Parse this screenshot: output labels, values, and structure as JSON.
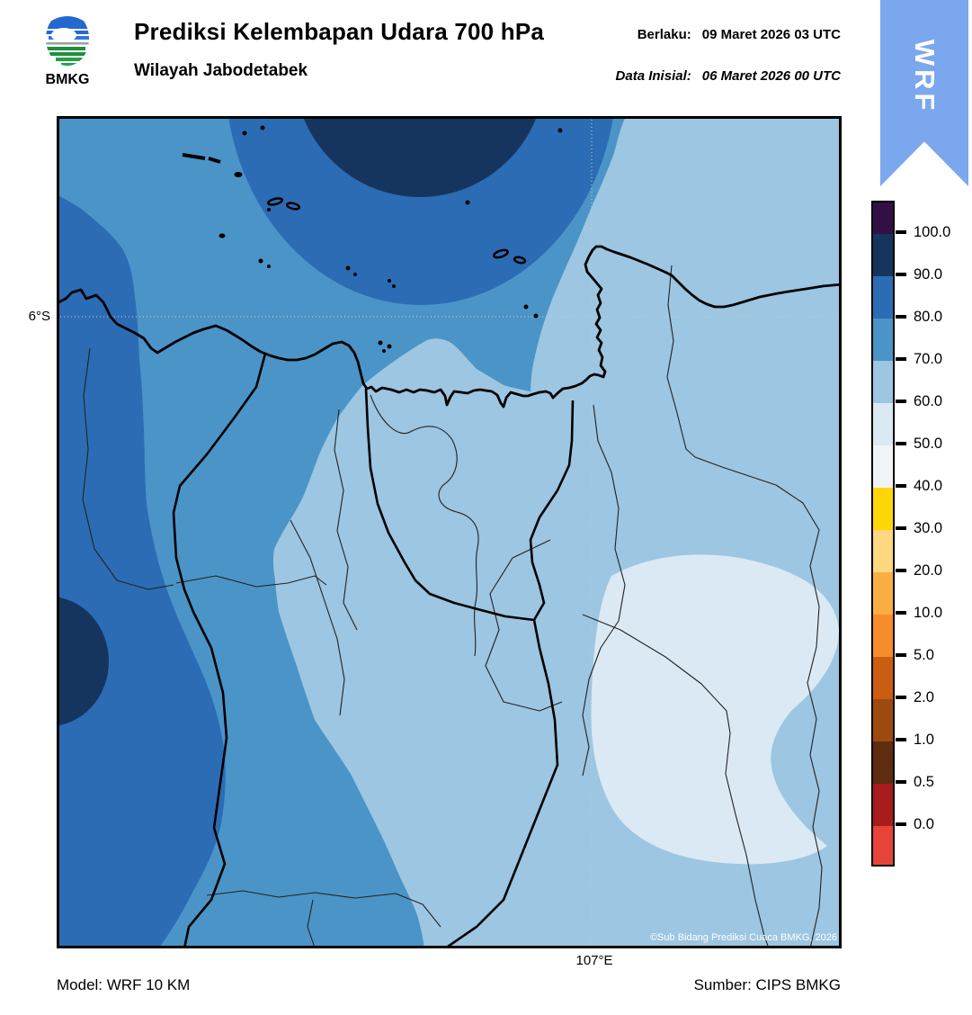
{
  "header": {
    "logo_text": "BMKG",
    "title": "Prediksi Kelembapan Udara 700 hPa",
    "subtitle": "Wilayah Jabodetabek",
    "valid_label": "Berlaku:",
    "valid_value": "09 Maret 2026 03 UTC",
    "init_label": "Data Inisial:",
    "init_value": "06 Maret 2026 00 UTC",
    "ribbon_text": "WRF",
    "ribbon_color": "#7aa7ee"
  },
  "map": {
    "lat_label": "6°S",
    "lon_label": "107°E",
    "copyright": "©Sub Bidang Prediksi Cuaca BMKG, 2026",
    "palette": {
      "fill_60_70": "#9cc6e1",
      "fill_70_80": "#4b94c7",
      "fill_80_90": "#2c6cb4",
      "fill_90_100": "#16355e",
      "fill_50_60": "#dbe9f4",
      "coast_color": "#000000",
      "gridline_color": "#c8cfcf"
    }
  },
  "footer": {
    "model": "Model: WRF 10 KM",
    "source": "Sumber: CIPS BMKG"
  },
  "colorbar": {
    "tick_labels": [
      "100.0",
      "90.0",
      "80.0",
      "70.0",
      "60.0",
      "50.0",
      "40.0",
      "30.0",
      "20.0",
      "10.0",
      "5.0",
      "2.0",
      "1.0",
      "0.5",
      "0.0"
    ],
    "segment_colors_top_to_bottom": [
      "#321046",
      "#16355e",
      "#2c6cb4",
      "#4b94c7",
      "#9cc6e1",
      "#dbe9f4",
      "#f1f4f7",
      "#ffd608",
      "#fdd87e",
      "#fbaf42",
      "#f78d2a",
      "#cb5d13",
      "#9d4a10",
      "#5e2c0e",
      "#a81c1c",
      "#e64438"
    ]
  },
  "chart_data": {
    "type": "heatmap",
    "title": "Prediksi Kelembapan Udara 700 hPa",
    "subtitle": "Wilayah Jabodetabek",
    "legend_values": [
      100.0,
      90.0,
      80.0,
      70.0,
      60.0,
      50.0,
      40.0,
      30.0,
      20.0,
      10.0,
      5.0,
      2.0,
      1.0,
      0.5,
      0.0
    ],
    "legend_position": "right",
    "x_tick_labels": [
      "107°E"
    ],
    "y_tick_labels": [
      "6°S"
    ],
    "regions_humidity_percent": {
      "northwest_sea_band": "80-90",
      "north_central_sea_core": "90-100",
      "west_coast_inland_band": "80-90",
      "southwest_core": "90-100",
      "central_sea_and_land": "70-80",
      "east_and_southeast_land": "60-70",
      "southeast_pale_pocket": "50-60"
    }
  }
}
